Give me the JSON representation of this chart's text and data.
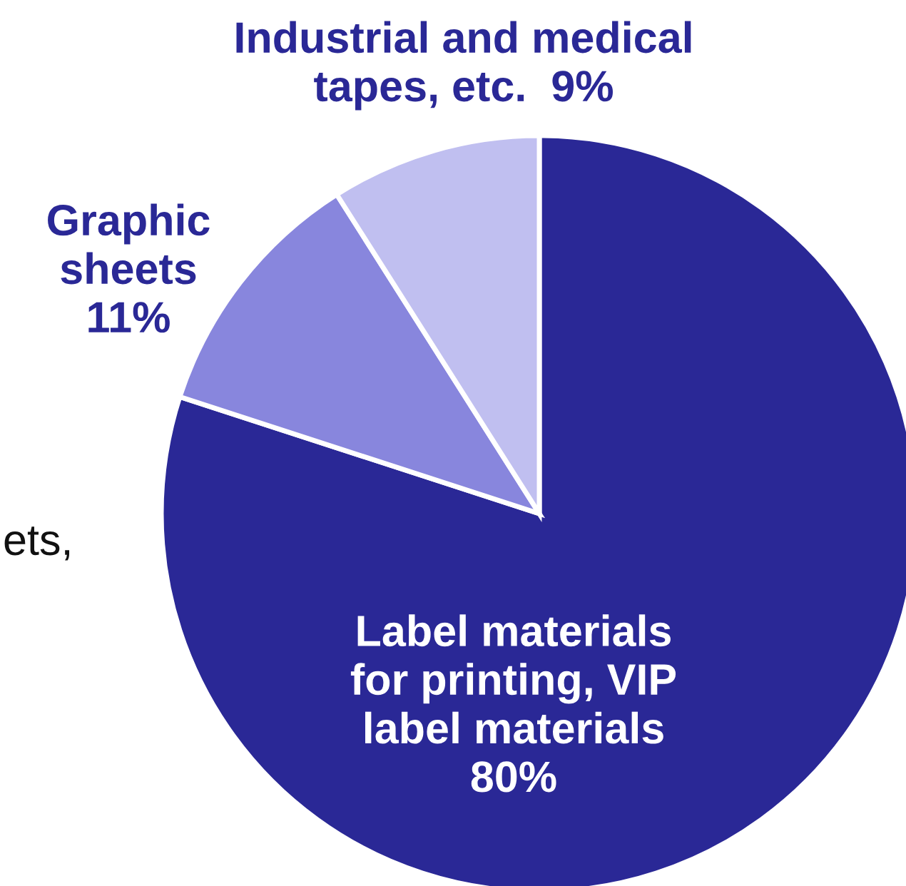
{
  "chart_data": {
    "type": "pie",
    "categories": [
      "Label materials\nfor printing, VIP\nlabel materials",
      "Graphic\nsheets",
      "Industrial and medical\ntapes, etc."
    ],
    "values": [
      80,
      11,
      9
    ],
    "colors": [
      "#2a2896",
      "#8886dd",
      "#c0bff0"
    ],
    "value_labels": [
      "80%",
      "11%",
      "9%"
    ],
    "annotations": [
      "ets,"
    ]
  }
}
